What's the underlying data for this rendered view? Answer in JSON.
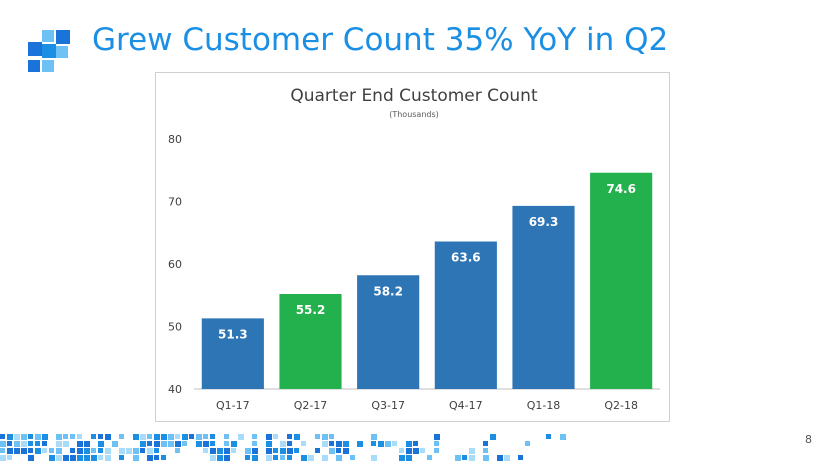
{
  "slide": {
    "title": "Grew Customer Count 35% YoY in Q2",
    "page_number": "8"
  },
  "colors": {
    "title": "#1a8fe3",
    "blue_bar": "#2e75b6",
    "green_bar": "#22b14c",
    "logo_dark": "#1a73d9",
    "logo_light": "#6ec1f5"
  },
  "chart_data": {
    "type": "bar",
    "title": "Quarter End Customer Count",
    "subtitle": "(Thousands)",
    "xlabel": "",
    "ylabel": "",
    "ylim": [
      40,
      80
    ],
    "yticks": [
      40,
      50,
      60,
      70,
      80
    ],
    "grid": false,
    "legend": "none",
    "categories": [
      "Q1-17",
      "Q2-17",
      "Q3-17",
      "Q4-17",
      "Q1-18",
      "Q2-18"
    ],
    "values": [
      51.3,
      55.2,
      58.2,
      63.6,
      69.3,
      74.6
    ],
    "labels": [
      "51.3",
      "55.2",
      "58.2",
      "63.6",
      "69.3",
      "74.6"
    ],
    "bar_colors": [
      "#2e75b6",
      "#22b14c",
      "#2e75b6",
      "#2e75b6",
      "#2e75b6",
      "#22b14c"
    ]
  }
}
